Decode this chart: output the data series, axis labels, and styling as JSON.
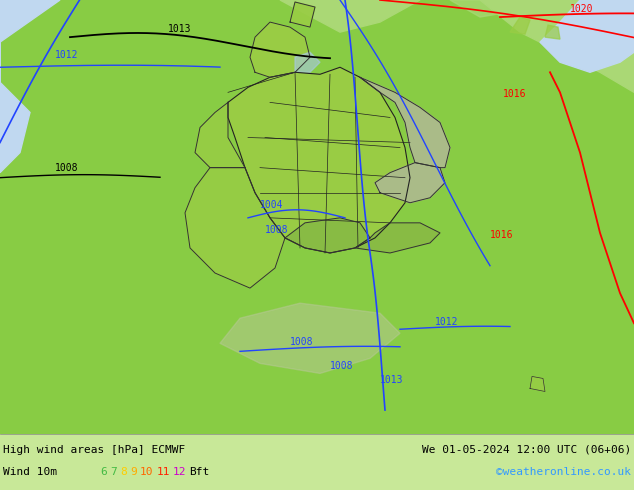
{
  "title_left": "High wind areas [hPa] ECMWF",
  "title_right": "We 01-05-2024 12:00 UTC (06+06)",
  "subtitle_left": "Wind 10m",
  "subtitle_right": "©weatheronline.co.uk",
  "wind_labels": [
    "6",
    "7",
    "8",
    "9",
    "10",
    "11",
    "12",
    "Bft"
  ],
  "wind_colors": [
    "#44bb44",
    "#44bb44",
    "#ffcc00",
    "#ffaa00",
    "#ff6600",
    "#ff2200",
    "#cc00cc",
    "#000000"
  ],
  "bg_bottom": "#c8e898",
  "fig_width": 6.34,
  "fig_height": 4.9,
  "dpi": 100,
  "map_bg_green": "#88cc44",
  "map_bg_light_green": "#aad875",
  "map_bg_gray_green": "#b8c898",
  "map_bg_sea_blue": "#c0d8f0",
  "map_bg_light_blue": "#d0e8f8",
  "map_water_blue": "#a8c8e8"
}
